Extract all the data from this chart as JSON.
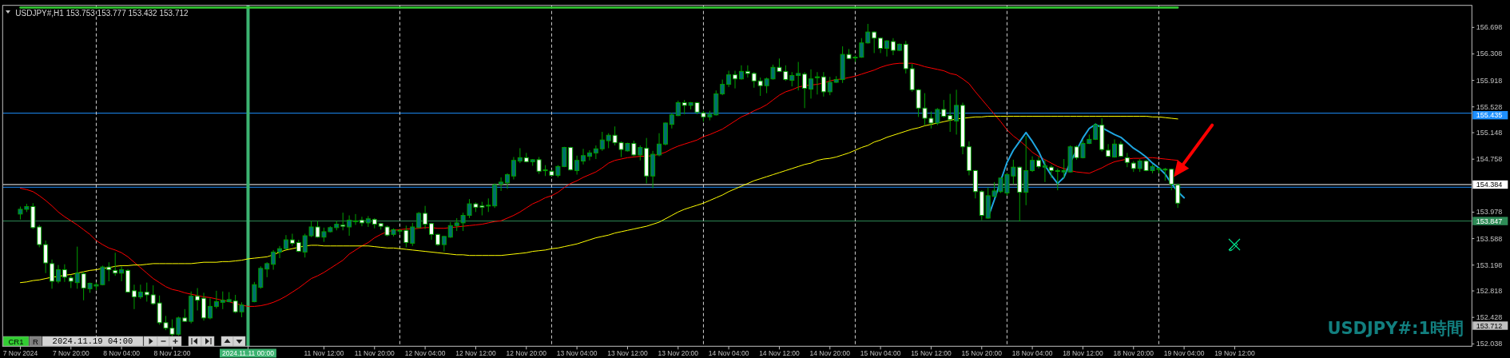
{
  "chart_data": {
    "type": "candlestick",
    "title": "USDJPY#,H1 153.753 153.777 153.432 153.712",
    "annotations": [
      "USDJPY#:1時間",
      "CR1",
      "R",
      "2024.11.19 04:00",
      "153.712"
    ],
    "categories": [
      "7 Nov 2024",
      null,
      null,
      null,
      null,
      null,
      null,
      null,
      "7 Nov 20:00",
      null,
      null,
      null,
      null,
      null,
      null,
      null,
      "8 Nov 04:00",
      null,
      null,
      null,
      null,
      null,
      null,
      null,
      "8 Nov 12:00",
      null,
      null,
      null,
      null,
      null,
      null,
      null,
      null,
      null,
      null,
      null,
      "2024.11.11 00:00",
      null,
      null,
      null,
      null,
      null,
      null,
      null,
      null,
      null,
      null,
      null,
      "11 Nov 12:00",
      null,
      null,
      null,
      null,
      null,
      null,
      null,
      "11 Nov 20:00",
      null,
      null,
      null,
      null,
      null,
      null,
      null,
      "12 Nov 04:00",
      null,
      null,
      null,
      null,
      null,
      null,
      null,
      "12 Nov 12:00",
      null,
      null,
      null,
      null,
      null,
      null,
      null,
      "12 Nov 20:00",
      null,
      null,
      null,
      null,
      null,
      null,
      null,
      "13 Nov 04:00",
      null,
      null,
      null,
      null,
      null,
      null,
      null,
      "13 Nov 12:00",
      null,
      null,
      null,
      null,
      null,
      null,
      null,
      "13 Nov 20:00",
      null,
      null,
      null,
      null,
      null,
      null,
      null,
      "14 Nov 04:00",
      null,
      null,
      null,
      null,
      null,
      null,
      null,
      "14 Nov 12:00",
      null,
      null,
      null,
      null,
      null,
      null,
      null,
      "14 Nov 20:00",
      null,
      null,
      null,
      null,
      null,
      null,
      null,
      "15 Nov 04:00",
      null,
      null,
      null,
      null,
      null,
      null,
      null,
      "15 Nov 12:00",
      null,
      null,
      null,
      null,
      null,
      null,
      null,
      "15 Nov 20:00",
      null,
      null,
      null,
      null,
      null,
      null,
      null,
      "18 Nov 04:00",
      null,
      null,
      null,
      null,
      null,
      null,
      null,
      "18 Nov 12:00",
      null,
      null,
      null,
      null,
      null,
      null,
      null,
      "18 Nov 20:00",
      null,
      null,
      null,
      null,
      null,
      null,
      null,
      "19 Nov 04:00",
      null,
      null,
      null,
      null,
      null,
      null,
      null,
      "19 Nov 12:00",
      null,
      null,
      null,
      null,
      null,
      null,
      null,
      null,
      null,
      null,
      null,
      null,
      null,
      null,
      null,
      null,
      null,
      null,
      null,
      null,
      null,
      null,
      null,
      null,
      null,
      null,
      null,
      null,
      null,
      null,
      null,
      null,
      null,
      null,
      null,
      null,
      null
    ],
    "ohlc": [
      [
        153.95,
        154.06,
        153.87,
        154.02
      ],
      [
        154.02,
        154.1,
        153.98,
        154.06
      ],
      [
        154.06,
        154.11,
        153.73,
        153.75
      ],
      [
        153.76,
        153.79,
        153.46,
        153.5
      ],
      [
        153.5,
        153.56,
        153.08,
        153.23
      ],
      [
        153.22,
        153.28,
        152.85,
        152.96
      ],
      [
        152.96,
        153.2,
        152.93,
        153.13
      ],
      [
        153.13,
        153.21,
        152.95,
        153.02
      ],
      [
        153.01,
        153.05,
        152.86,
        152.96
      ],
      [
        152.94,
        153.47,
        152.85,
        153.08
      ],
      [
        153.07,
        153.1,
        152.68,
        152.86
      ],
      [
        152.85,
        152.94,
        152.79,
        152.93
      ],
      [
        152.89,
        152.94,
        152.83,
        152.91
      ],
      [
        152.91,
        153.19,
        152.9,
        153.17
      ],
      [
        153.17,
        153.24,
        152.96,
        153.13
      ],
      [
        153.12,
        153.38,
        153.04,
        153.08
      ],
      [
        153.08,
        153.18,
        152.96,
        153.13
      ],
      [
        153.12,
        153.14,
        152.79,
        152.8
      ],
      [
        152.82,
        152.91,
        152.55,
        152.73
      ],
      [
        152.73,
        152.91,
        152.7,
        152.8
      ],
      [
        152.8,
        152.94,
        152.66,
        152.76
      ],
      [
        152.76,
        152.9,
        152.61,
        152.63
      ],
      [
        152.64,
        152.75,
        152.32,
        152.35
      ],
      [
        152.35,
        152.45,
        152.24,
        152.27
      ],
      [
        152.27,
        152.4,
        152.15,
        152.18
      ],
      [
        152.18,
        152.44,
        152.16,
        152.42
      ],
      [
        152.42,
        152.55,
        152.36,
        152.37
      ],
      [
        152.37,
        152.81,
        152.34,
        152.74
      ],
      [
        152.74,
        152.86,
        152.53,
        152.68
      ],
      [
        152.71,
        152.79,
        152.38,
        152.42
      ],
      [
        152.42,
        152.71,
        152.4,
        152.59
      ],
      [
        152.59,
        152.82,
        152.56,
        152.66
      ],
      [
        152.65,
        152.81,
        152.55,
        152.68
      ],
      [
        152.66,
        152.8,
        152.65,
        152.69
      ],
      [
        152.67,
        152.76,
        152.49,
        152.51
      ],
      [
        152.51,
        152.65,
        152.43,
        152.61
      ],
      null,
      [
        152.66,
        152.95,
        152.65,
        152.91
      ],
      [
        152.87,
        153.18,
        152.85,
        153.15
      ],
      [
        153.14,
        153.24,
        153.02,
        153.22
      ],
      [
        153.21,
        153.42,
        153.13,
        153.39
      ],
      [
        153.39,
        153.48,
        153.3,
        153.44
      ],
      [
        153.44,
        153.64,
        153.43,
        153.57
      ],
      [
        153.57,
        153.66,
        153.48,
        153.52
      ],
      [
        153.53,
        153.57,
        153.39,
        153.4
      ],
      [
        153.39,
        153.66,
        153.31,
        153.63
      ],
      [
        153.63,
        153.85,
        153.61,
        153.76
      ],
      [
        153.76,
        153.85,
        153.6,
        153.61
      ],
      [
        153.61,
        153.75,
        153.54,
        153.69
      ],
      [
        153.69,
        153.77,
        153.68,
        153.75
      ],
      [
        153.75,
        153.85,
        153.71,
        153.8
      ],
      [
        153.79,
        153.97,
        153.71,
        153.77
      ],
      [
        153.76,
        153.93,
        153.63,
        153.86
      ],
      [
        153.84,
        153.95,
        153.79,
        153.85
      ],
      [
        153.86,
        153.91,
        153.77,
        153.82
      ],
      [
        153.82,
        153.92,
        153.76,
        153.88
      ],
      [
        153.87,
        153.89,
        153.74,
        153.8
      ],
      [
        153.81,
        153.82,
        153.72,
        153.77
      ],
      [
        153.76,
        153.78,
        153.62,
        153.64
      ],
      [
        153.65,
        153.74,
        153.62,
        153.72
      ],
      [
        153.7,
        153.73,
        153.65,
        153.71
      ],
      [
        153.71,
        153.78,
        153.46,
        153.53
      ],
      [
        153.52,
        153.82,
        153.48,
        153.76
      ],
      [
        153.75,
        153.98,
        153.74,
        153.96
      ],
      [
        153.96,
        154.07,
        153.73,
        153.8
      ],
      [
        153.81,
        153.82,
        153.57,
        153.65
      ],
      [
        153.65,
        153.66,
        153.48,
        153.5
      ],
      [
        153.5,
        153.63,
        153.4,
        153.62
      ],
      [
        153.61,
        153.83,
        153.6,
        153.78
      ],
      [
        153.78,
        153.89,
        153.7,
        153.82
      ],
      [
        153.82,
        153.97,
        153.7,
        153.93
      ],
      [
        153.93,
        154.17,
        153.89,
        154.1
      ],
      [
        154.1,
        154.12,
        153.98,
        154.05
      ],
      [
        154.07,
        154.13,
        153.93,
        154.05
      ],
      [
        154.07,
        154.18,
        153.98,
        154.08
      ],
      [
        154.07,
        154.4,
        154.04,
        154.38
      ],
      [
        154.39,
        154.49,
        154.29,
        154.42
      ],
      [
        154.41,
        154.55,
        154.32,
        154.53
      ],
      [
        154.51,
        154.79,
        154.46,
        154.74
      ],
      [
        154.73,
        154.92,
        154.7,
        154.78
      ],
      [
        154.78,
        154.85,
        154.71,
        154.72
      ],
      [
        154.72,
        154.76,
        154.66,
        154.75
      ],
      [
        154.75,
        154.79,
        154.54,
        154.58
      ],
      [
        154.6,
        154.67,
        154.51,
        154.59
      ],
      [
        154.58,
        154.6,
        154.51,
        154.52
      ],
      [
        154.52,
        154.67,
        154.49,
        154.65
      ],
      [
        154.65,
        154.94,
        154.64,
        154.93
      ],
      [
        154.93,
        154.94,
        154.59,
        154.6
      ],
      [
        154.59,
        154.81,
        154.53,
        154.74
      ],
      [
        154.73,
        154.91,
        154.68,
        154.81
      ],
      [
        154.8,
        154.89,
        154.74,
        154.85
      ],
      [
        154.85,
        154.96,
        154.76,
        154.91
      ],
      [
        154.91,
        155.16,
        154.88,
        155.04
      ],
      [
        155.03,
        155.14,
        154.92,
        155.11
      ],
      [
        155.11,
        155.24,
        154.96,
        155.0
      ],
      [
        155.0,
        155.02,
        154.79,
        154.9
      ],
      [
        154.88,
        155.0,
        154.87,
        154.99
      ],
      [
        154.99,
        155.03,
        154.8,
        154.82
      ],
      [
        154.82,
        154.96,
        154.74,
        154.93
      ],
      [
        154.92,
        155.07,
        154.4,
        154.51
      ],
      [
        154.51,
        154.88,
        154.33,
        154.83
      ],
      [
        154.82,
        155.14,
        154.8,
        154.98
      ],
      [
        154.98,
        155.3,
        154.96,
        155.29
      ],
      [
        155.27,
        155.44,
        155.21,
        155.41
      ],
      [
        155.4,
        155.62,
        155.39,
        155.59
      ],
      [
        155.59,
        155.63,
        155.42,
        155.55
      ],
      [
        155.55,
        155.6,
        155.49,
        155.59
      ],
      [
        155.59,
        155.6,
        155.42,
        155.45
      ],
      [
        155.44,
        155.47,
        155.31,
        155.38
      ],
      [
        155.38,
        155.47,
        155.33,
        155.42
      ],
      [
        155.41,
        155.77,
        155.4,
        155.72
      ],
      [
        155.72,
        155.93,
        155.7,
        155.86
      ],
      [
        155.86,
        156.06,
        155.82,
        156.0
      ],
      [
        156.0,
        156.06,
        155.8,
        155.94
      ],
      [
        155.94,
        156.14,
        155.93,
        156.05
      ],
      [
        156.05,
        156.14,
        155.96,
        156.02
      ],
      [
        156.02,
        156.04,
        155.81,
        155.91
      ],
      [
        155.91,
        155.96,
        155.69,
        155.84
      ],
      [
        155.84,
        155.96,
        155.73,
        155.94
      ],
      [
        155.94,
        156.15,
        155.93,
        156.11
      ],
      [
        156.11,
        156.24,
        156.04,
        156.05
      ],
      [
        156.05,
        156.14,
        155.91,
        155.93
      ],
      [
        155.92,
        156.04,
        155.83,
        155.99
      ],
      [
        155.99,
        156.19,
        155.77,
        156.02
      ],
      [
        156.01,
        156.04,
        155.51,
        155.8
      ],
      [
        155.79,
        156.08,
        155.65,
        155.94
      ],
      [
        155.96,
        156.04,
        155.71,
        155.97
      ],
      [
        155.97,
        156.04,
        155.68,
        155.75
      ],
      [
        155.75,
        155.97,
        155.7,
        155.89
      ],
      [
        155.89,
        155.98,
        155.88,
        155.93
      ],
      [
        155.93,
        156.42,
        155.88,
        156.3
      ],
      [
        156.3,
        156.38,
        156.23,
        156.24
      ],
      [
        156.25,
        156.28,
        156.19,
        156.26
      ],
      [
        156.26,
        156.54,
        156.25,
        156.47
      ],
      [
        156.47,
        156.75,
        156.46,
        156.63
      ],
      [
        156.63,
        156.64,
        156.32,
        156.54
      ],
      [
        156.54,
        156.55,
        156.32,
        156.39
      ],
      [
        156.39,
        156.51,
        156.27,
        156.5
      ],
      [
        156.49,
        156.54,
        156.29,
        156.36
      ],
      [
        156.36,
        156.46,
        156.35,
        156.45
      ],
      [
        156.45,
        156.5,
        156.02,
        156.09
      ],
      [
        156.09,
        156.16,
        155.75,
        155.78
      ],
      [
        155.78,
        155.79,
        155.38,
        155.51
      ],
      [
        155.51,
        155.73,
        155.26,
        155.36
      ],
      [
        155.36,
        155.46,
        155.21,
        155.29
      ],
      [
        155.29,
        155.51,
        155.26,
        155.49
      ],
      [
        155.49,
        155.63,
        155.37,
        155.39
      ],
      [
        155.4,
        155.72,
        155.16,
        155.34
      ],
      [
        155.32,
        155.78,
        155.12,
        155.55
      ],
      [
        155.55,
        155.59,
        154.83,
        154.94
      ],
      [
        154.94,
        155.02,
        154.52,
        154.59
      ],
      [
        154.59,
        154.6,
        154.18,
        154.28
      ],
      [
        154.28,
        154.3,
        153.86,
        153.93
      ],
      [
        153.89,
        154.34,
        153.88,
        154.22
      ],
      [
        154.21,
        154.42,
        154.2,
        154.29
      ],
      [
        154.28,
        154.49,
        154.26,
        154.48
      ],
      [
        154.26,
        154.55,
        154.22,
        154.53
      ],
      [
        154.51,
        154.75,
        154.39,
        154.64
      ],
      [
        154.64,
        154.65,
        153.84,
        154.27
      ],
      [
        154.27,
        155.1,
        154.08,
        154.59
      ],
      [
        154.59,
        154.8,
        154.57,
        154.74
      ],
      [
        154.74,
        154.79,
        154.62,
        154.65
      ],
      [
        154.64,
        154.75,
        154.42,
        154.66
      ],
      [
        154.64,
        154.67,
        154.48,
        154.59
      ],
      [
        154.59,
        154.62,
        154.3,
        154.58
      ],
      [
        154.57,
        154.76,
        154.48,
        154.59
      ],
      [
        154.57,
        154.96,
        154.56,
        154.94
      ],
      [
        154.94,
        154.96,
        154.75,
        154.78
      ],
      [
        154.78,
        155.04,
        154.77,
        154.99
      ],
      [
        154.99,
        155.12,
        154.98,
        155.05
      ],
      [
        155.05,
        155.29,
        155.04,
        155.26
      ],
      [
        155.26,
        155.36,
        154.87,
        154.9
      ],
      [
        154.89,
        154.98,
        154.79,
        154.8
      ],
      [
        154.79,
        155.05,
        154.78,
        154.98
      ],
      [
        154.98,
        155.02,
        154.79,
        154.8
      ],
      [
        154.78,
        154.85,
        154.64,
        154.71
      ],
      [
        154.7,
        154.73,
        154.57,
        154.62
      ],
      [
        154.62,
        154.76,
        154.57,
        154.73
      ],
      [
        154.73,
        154.75,
        154.58,
        154.59
      ],
      [
        154.59,
        154.68,
        154.55,
        154.65
      ],
      [
        154.62,
        154.63,
        154.55,
        154.61
      ],
      [
        154.61,
        154.63,
        154.44,
        154.6
      ],
      [
        154.61,
        154.62,
        154.3,
        154.39
      ],
      [
        154.38,
        154.4,
        154.04,
        154.11
      ],
      null,
      null,
      null,
      null,
      null,
      null,
      null,
      null,
      null,
      null,
      null,
      null,
      null,
      null,
      null,
      null,
      null,
      null,
      null,
      null,
      null,
      null,
      null,
      null,
      null,
      null,
      null,
      null,
      null,
      null,
      null,
      null,
      null,
      null,
      null,
      null,
      null,
      null,
      null,
      null,
      null,
      null,
      null,
      null,
      null,
      null
    ],
    "colors": [
      "#007070",
      "#007070",
      "#ffffff",
      "#ffffff",
      "#ffffff",
      "#ffffff",
      "#007070",
      "#ffffff",
      "#ffffff",
      "#007070",
      "#ffffff",
      "#007070",
      "#007070",
      "#007070",
      "#ffffff",
      "#ffffff",
      "#007070",
      "#ffffff",
      "#ffffff",
      "#007070",
      "#ffffff",
      "#ffffff",
      "#ffffff",
      "#ffffff",
      "#ffffff",
      "#007070",
      "#ffffff",
      "#007070",
      "#ffffff",
      "#ffffff",
      "#007070",
      "#007070",
      "#007070",
      "#007070",
      "#ffffff",
      "#007070",
      null,
      "#007070",
      "#007070",
      "#007070",
      "#007070",
      "#007070",
      "#007070",
      "#ffffff",
      "#ffffff",
      "#007070",
      "#007070",
      "#ffffff",
      "#007070",
      "#007070",
      "#007070",
      "#ffffff",
      "#007070",
      "#007070",
      "#ffffff",
      "#007070",
      "#ffffff",
      "#ffffff",
      "#ffffff",
      "#007070",
      "#007070",
      "#ffffff",
      "#007070",
      "#007070",
      "#ffffff",
      "#ffffff",
      "#ffffff",
      "#007070",
      "#007070",
      "#007070",
      "#007070",
      "#007070",
      "#ffffff",
      "#ffffff",
      "#007070",
      "#007070",
      "#007070",
      "#007070",
      "#007070",
      "#007070",
      "#ffffff",
      "#007070",
      "#ffffff",
      "#ffffff",
      "#ffffff",
      "#007070",
      "#007070",
      "#ffffff",
      "#007070",
      "#007070",
      "#007070",
      "#007070",
      "#007070",
      "#007070",
      "#ffffff",
      "#ffffff",
      "#007070",
      "#ffffff",
      "#007070",
      "#ffffff",
      "#007070",
      "#007070",
      "#007070",
      "#007070",
      "#007070",
      "#ffffff",
      "#007070",
      "#ffffff",
      "#ffffff",
      "#007070",
      "#007070",
      "#007070",
      "#007070",
      "#ffffff",
      "#007070",
      "#ffffff",
      "#ffffff",
      "#ffffff",
      "#007070",
      "#007070",
      "#ffffff",
      "#ffffff",
      "#007070",
      "#007070",
      "#ffffff",
      "#007070",
      "#007070",
      "#ffffff",
      "#007070",
      "#007070",
      "#007070",
      "#ffffff",
      "#007070",
      "#007070",
      "#007070",
      "#ffffff",
      "#ffffff",
      "#007070",
      "#ffffff",
      "#007070",
      "#ffffff",
      "#ffffff",
      "#ffffff",
      "#ffffff",
      "#ffffff",
      "#007070",
      "#ffffff",
      "#ffffff",
      "#007070",
      "#ffffff",
      "#ffffff",
      "#ffffff",
      "#ffffff",
      "#007070",
      "#007070",
      "#007070",
      "#007070",
      "#007070",
      "#ffffff",
      "#007070",
      "#007070",
      "#ffffff",
      "#007070",
      "#ffffff",
      "#ffffff",
      "#007070",
      "#007070",
      "#ffffff",
      "#007070",
      "#007070",
      "#007070",
      "#ffffff",
      "#ffffff",
      "#007070",
      "#ffffff",
      "#ffffff",
      "#ffffff",
      "#007070",
      "#ffffff",
      "#007070",
      "#ffffff",
      "#ffffff",
      "#ffffff",
      "#ffffff",
      null,
      null,
      null,
      null,
      null,
      null,
      null,
      null,
      null,
      null,
      null,
      null,
      null,
      null,
      null,
      null,
      null,
      null,
      null,
      null,
      null,
      null,
      null,
      null,
      null,
      null,
      null,
      null,
      null,
      null,
      null,
      null,
      null,
      null,
      null,
      null,
      null,
      null,
      null,
      null,
      null,
      null,
      null,
      null,
      null,
      null
    ],
    "series": [
      {
        "type": "line",
        "color": "#ff0000",
        "values": [
          154.33,
          154.31,
          154.28,
          154.22,
          154.15,
          154.07,
          153.98,
          153.91,
          153.85,
          153.79,
          153.72,
          153.65,
          153.56,
          153.5,
          153.45,
          153.42,
          153.38,
          153.32,
          153.24,
          153.16,
          153.08,
          153.0,
          152.94,
          152.88,
          152.84,
          152.82,
          152.79,
          152.77,
          152.75,
          152.73,
          152.72,
          152.7,
          152.68,
          152.66,
          152.63,
          152.61,
          152.59,
          152.59,
          152.6,
          152.62,
          152.65,
          152.69,
          152.74,
          152.8,
          152.86,
          152.93,
          153.0,
          153.04,
          153.09,
          153.15,
          153.21,
          153.27,
          153.36,
          153.42,
          153.48,
          153.53,
          153.6,
          153.65,
          153.69,
          153.71,
          153.72,
          153.73,
          153.73,
          153.74,
          153.75,
          153.75,
          153.74,
          153.74,
          153.75,
          153.76,
          153.77,
          153.78,
          153.79,
          153.8,
          153.82,
          153.84,
          153.85,
          153.89,
          153.93,
          153.98,
          154.04,
          154.1,
          154.14,
          154.19,
          154.22,
          154.27,
          154.34,
          154.4,
          154.44,
          154.49,
          154.53,
          154.57,
          154.63,
          154.7,
          154.74,
          154.76,
          154.78,
          154.79,
          154.8,
          154.8,
          154.81,
          154.83,
          154.86,
          154.91,
          154.95,
          154.98,
          155.01,
          155.04,
          155.09,
          155.12,
          155.16,
          155.2,
          155.26,
          155.32,
          155.38,
          155.42,
          155.47,
          155.51,
          155.56,
          155.63,
          155.7,
          155.75,
          155.78,
          155.82,
          155.84,
          155.85,
          155.86,
          155.88,
          155.91,
          155.93,
          155.94,
          155.96,
          155.98,
          156.01,
          156.04,
          156.07,
          156.11,
          156.14,
          156.16,
          156.17,
          156.17,
          156.17,
          156.15,
          156.12,
          156.1,
          156.08,
          156.06,
          156.02,
          156.0,
          155.94,
          155.87,
          155.75,
          155.64,
          155.53,
          155.42,
          155.31,
          155.19,
          155.1,
          155.03,
          154.95,
          154.86,
          154.8,
          154.75,
          154.7,
          154.65,
          154.62,
          154.59,
          154.57,
          154.56,
          154.55,
          154.59,
          154.63,
          154.68,
          154.72,
          154.74,
          154.76,
          154.77,
          154.77,
          154.78,
          154.78,
          154.77,
          154.76,
          154.75,
          154.74,
          null,
          null,
          null,
          null,
          null,
          null,
          null,
          null,
          null,
          null,
          null,
          null,
          null,
          null,
          null,
          null,
          null,
          null,
          null,
          null,
          null,
          null,
          null,
          null,
          null,
          null,
          null,
          null,
          null,
          null,
          null,
          null,
          null,
          null,
          null,
          null,
          null,
          null,
          null,
          null,
          null,
          null,
          null,
          null,
          null,
          null
        ]
      },
      {
        "type": "line",
        "color": "#ffff00",
        "values": [
          152.94,
          152.95,
          152.97,
          152.98,
          153.0,
          153.02,
          153.03,
          153.05,
          153.06,
          153.08,
          153.1,
          153.12,
          153.13,
          153.15,
          153.16,
          153.18,
          153.19,
          153.19,
          153.2,
          153.2,
          153.21,
          153.22,
          153.22,
          153.22,
          153.22,
          153.22,
          153.22,
          153.22,
          153.23,
          153.24,
          153.24,
          153.24,
          153.25,
          153.25,
          153.26,
          153.27,
          153.29,
          153.3,
          153.31,
          153.32,
          153.35,
          153.39,
          153.42,
          153.44,
          153.46,
          153.48,
          153.49,
          153.49,
          153.48,
          153.48,
          153.48,
          153.48,
          153.48,
          153.48,
          153.48,
          153.48,
          153.47,
          153.46,
          153.45,
          153.45,
          153.44,
          153.43,
          153.42,
          153.41,
          153.4,
          153.39,
          153.38,
          153.37,
          153.36,
          153.35,
          153.35,
          153.34,
          153.34,
          153.34,
          153.34,
          153.34,
          153.34,
          153.35,
          153.36,
          153.37,
          153.38,
          153.4,
          153.41,
          153.42,
          153.44,
          153.45,
          153.47,
          153.49,
          153.51,
          153.54,
          153.57,
          153.6,
          153.62,
          153.64,
          153.67,
          153.69,
          153.71,
          153.73,
          153.75,
          153.77,
          153.8,
          153.83,
          153.88,
          153.93,
          153.98,
          154.02,
          154.05,
          154.08,
          154.11,
          154.15,
          154.19,
          154.23,
          154.28,
          154.32,
          154.36,
          154.4,
          154.44,
          154.47,
          154.5,
          154.53,
          154.56,
          154.59,
          154.62,
          154.65,
          154.68,
          154.7,
          154.74,
          154.76,
          154.77,
          154.79,
          154.82,
          154.85,
          154.89,
          154.93,
          154.96,
          155.01,
          155.04,
          155.08,
          155.11,
          155.14,
          155.17,
          155.2,
          155.22,
          155.25,
          155.27,
          155.29,
          155.31,
          155.33,
          155.35,
          155.36,
          155.37,
          155.38,
          155.38,
          155.39,
          155.39,
          155.39,
          155.39,
          155.39,
          155.39,
          155.39,
          155.39,
          155.39,
          155.39,
          155.39,
          155.39,
          155.39,
          155.39,
          155.39,
          155.39,
          155.39,
          155.39,
          155.39,
          155.39,
          155.39,
          155.39,
          155.39,
          155.39,
          155.39,
          155.39,
          155.38,
          155.38,
          155.37,
          155.36,
          155.35,
          null,
          null,
          null,
          null,
          null,
          null,
          null,
          null,
          null,
          null,
          null,
          null,
          null,
          null,
          null,
          null,
          null,
          null,
          null,
          null,
          null,
          null,
          null,
          null,
          null,
          null,
          null,
          null,
          null,
          null,
          null,
          null,
          null,
          null,
          null,
          null,
          null,
          null,
          null,
          null,
          null,
          null,
          null,
          null,
          null,
          null
        ]
      },
      {
        "type": "line",
        "color": "#1fa6e0",
        "values": [
          null,
          null,
          null,
          null,
          null,
          null,
          null,
          null,
          null,
          null,
          null,
          null,
          null,
          null,
          null,
          null,
          null,
          null,
          null,
          null,
          null,
          null,
          null,
          null,
          null,
          null,
          null,
          null,
          null,
          null,
          null,
          null,
          null,
          null,
          null,
          null,
          null,
          null,
          null,
          null,
          null,
          null,
          null,
          null,
          null,
          null,
          null,
          null,
          null,
          null,
          null,
          null,
          null,
          null,
          null,
          null,
          null,
          null,
          null,
          null,
          null,
          null,
          null,
          null,
          null,
          null,
          null,
          null,
          null,
          null,
          null,
          null,
          null,
          null,
          null,
          null,
          null,
          null,
          null,
          null,
          null,
          null,
          null,
          null,
          null,
          null,
          null,
          null,
          null,
          null,
          null,
          null,
          null,
          null,
          null,
          null,
          null,
          null,
          null,
          null,
          null,
          null,
          null,
          null,
          null,
          null,
          null,
          null,
          null,
          null,
          null,
          null,
          null,
          null,
          null,
          null,
          null,
          null,
          null,
          null,
          null,
          null,
          null,
          null,
          null,
          null,
          null,
          null,
          null,
          null,
          null,
          null,
          null,
          null,
          null,
          null,
          null,
          null,
          null,
          null,
          null,
          null,
          null,
          null,
          null,
          null,
          null,
          null,
          null,
          null,
          null,
          null,
          null,
          153.9,
          154.16,
          154.44,
          154.71,
          154.89,
          155.02,
          155.15,
          155.02,
          154.87,
          154.67,
          154.52,
          154.4,
          154.49,
          154.71,
          154.89,
          155.07,
          155.21,
          155.27,
          155.22,
          155.17,
          155.12,
          155.08,
          155.0,
          154.92,
          154.86,
          154.79,
          154.7,
          154.63,
          154.54,
          154.4,
          154.28,
          154.19,
          null,
          null,
          null,
          null,
          null,
          null,
          null,
          null,
          null,
          null,
          null,
          null,
          null,
          null,
          null,
          null,
          null,
          null,
          null,
          null,
          null,
          null,
          null,
          null,
          null,
          null,
          null,
          null,
          null,
          null,
          null,
          null,
          null,
          null,
          null,
          null,
          null,
          null,
          null,
          null,
          null,
          null,
          null,
          null,
          null
        ]
      },
      {
        "type": "line",
        "color": "#32cd32",
        "values": [
          156.99,
          156.99,
          156.99,
          156.99,
          156.99,
          156.99,
          156.99,
          156.99,
          156.99,
          156.99,
          156.99,
          156.99,
          156.99,
          156.99,
          156.99,
          156.99,
          156.99,
          156.99,
          156.99,
          156.99,
          156.99,
          156.99,
          156.99,
          156.99,
          156.99,
          156.99,
          156.99,
          156.99,
          156.99,
          156.99,
          156.99,
          156.99,
          156.99,
          156.99,
          156.99,
          156.99,
          156.99,
          156.99,
          156.99,
          156.99,
          156.99,
          156.99,
          156.99,
          156.99,
          156.99,
          156.99,
          156.99,
          156.99,
          156.99,
          156.99,
          156.99,
          156.99,
          156.99,
          156.99,
          156.99,
          156.99,
          156.99,
          156.99,
          156.99,
          156.99,
          156.99,
          156.99,
          156.99,
          156.99,
          156.99,
          156.99,
          156.99,
          156.99,
          156.99,
          156.99,
          156.99,
          156.99,
          156.99,
          156.99,
          156.99,
          156.99,
          156.99,
          156.99,
          156.99,
          156.99,
          156.99,
          156.99,
          156.99,
          156.99,
          156.99,
          156.99,
          156.99,
          156.99,
          156.99,
          156.99,
          156.99,
          156.99,
          156.99,
          156.99,
          156.99,
          156.99,
          156.99,
          156.99,
          156.99,
          156.99,
          156.99,
          156.99,
          156.99,
          156.99,
          156.99,
          156.99,
          156.99,
          156.99,
          156.99,
          156.99,
          156.99,
          156.99,
          156.99,
          156.99,
          156.99,
          156.99,
          156.99,
          156.99,
          156.99,
          156.99,
          156.99,
          156.99,
          156.99,
          156.99,
          156.99,
          156.99,
          156.99,
          156.99,
          156.99,
          156.99,
          156.99,
          156.99,
          156.99,
          156.99,
          156.99,
          156.99,
          156.99,
          156.99,
          156.99,
          156.99,
          156.99,
          156.99,
          156.99,
          156.99,
          156.99,
          156.99,
          156.99,
          156.99,
          156.99,
          156.99,
          156.99,
          156.99,
          156.99,
          156.99,
          156.99,
          156.99,
          156.99,
          156.99,
          156.99,
          156.99,
          156.99,
          156.99,
          156.99,
          156.99,
          156.99,
          156.99,
          156.99,
          156.99,
          156.99,
          156.99,
          156.99,
          156.99,
          156.99,
          156.99,
          156.99,
          156.99,
          156.99,
          156.99,
          156.99,
          156.99,
          156.99,
          156.99,
          156.99,
          156.99,
          null,
          null,
          null,
          null,
          null,
          null,
          null,
          null,
          null,
          null,
          null,
          null,
          null,
          null,
          null,
          null,
          null,
          null,
          null,
          null,
          null,
          null,
          null,
          null,
          null,
          null,
          null,
          null,
          null,
          null,
          null,
          null,
          null,
          null,
          null,
          null,
          null,
          null,
          null,
          null,
          null,
          null,
          null,
          null,
          null,
          null
        ]
      }
    ],
    "ref_lines": [
      {
        "axis": "y",
        "value": 155.435,
        "label": "155.435",
        "color": "#1e90ff"
      },
      {
        "axis": "y",
        "value": 154.384,
        "label": "154.384",
        "color": "#ffffff"
      },
      {
        "axis": "y",
        "value": 154.345,
        "color": "#1e90ff"
      },
      {
        "axis": "y",
        "value": 153.847,
        "label": "153.847",
        "color": "#2e8b57"
      },
      {
        "axis": "x",
        "value": "2024.11.11 00:00",
        "color": "#3cb371"
      }
    ],
    "ylim": [
      152.003,
      157.023
    ],
    "yticks": [
      156.698,
      156.308,
      155.918,
      155.528,
      155.148,
      154.758,
      153.978,
      153.588,
      153.198,
      152.818,
      152.428,
      152.038
    ]
  }
}
